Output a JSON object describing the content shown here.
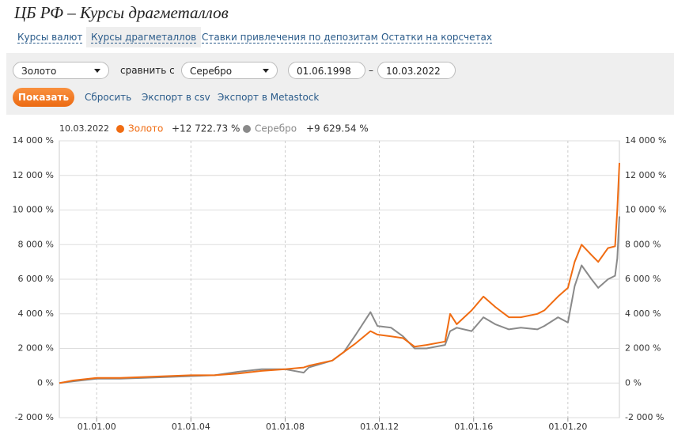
{
  "header": {
    "title": "ЦБ РФ – Курсы драгметаллов"
  },
  "tabs": [
    "Курсы валют",
    "Курсы драгметаллов",
    "Ставки привлечения по депозитам",
    "Остатки на корсчетах"
  ],
  "filters": {
    "metal": "Золото",
    "compare_label": "сравнить с",
    "compare_metal": "Серебро",
    "date_from": "01.06.1998",
    "date_separator": "–",
    "date_to": "10.03.2022"
  },
  "actions": {
    "show": "Показать",
    "reset": "Сбросить",
    "export_csv": "Экспорт в csv",
    "export_metastock": "Экспорт в Metastock"
  },
  "chart_data": {
    "type": "line",
    "legend_date": "10.03.2022",
    "x": [
      "1998-06-01",
      "1999-01-01",
      "2000-01-01",
      "2001-01-01",
      "2002-01-01",
      "2003-01-01",
      "2004-01-01",
      "2005-01-01",
      "2006-01-01",
      "2007-01-01",
      "2008-01-01",
      "2008-10-15",
      "2009-01-01",
      "2010-01-01",
      "2010-07-01",
      "2011-01-01",
      "2011-08-15",
      "2011-12-01",
      "2012-07-01",
      "2013-01-01",
      "2013-07-01",
      "2014-01-01",
      "2014-10-15",
      "2015-01-01",
      "2015-04-15",
      "2015-12-01",
      "2016-06-01",
      "2016-12-01",
      "2017-07-01",
      "2018-01-01",
      "2018-09-15",
      "2019-01-01",
      "2019-08-01",
      "2020-01-01",
      "2020-04-15",
      "2020-08-01",
      "2021-01-01",
      "2021-04-15",
      "2021-09-15",
      "2022-01-01",
      "2022-02-05",
      "2022-03-10"
    ],
    "series": [
      {
        "name": "Золото",
        "color": "#f06c12",
        "last_label": "+12 722.73 %",
        "values": [
          0,
          150,
          300,
          300,
          350,
          400,
          450,
          450,
          550,
          700,
          800,
          900,
          1000,
          1300,
          1800,
          2300,
          3000,
          2800,
          2700,
          2600,
          2100,
          2200,
          2400,
          4000,
          3400,
          4200,
          5000,
          4400,
          3800,
          3800,
          4000,
          4200,
          5000,
          5500,
          7000,
          8000,
          7400,
          7000,
          7800,
          7900,
          10000,
          12722.73
        ]
      },
      {
        "name": "Серебро",
        "color": "#8a8a8a",
        "last_label": "+9 629.54 %",
        "values": [
          0,
          100,
          250,
          250,
          300,
          350,
          400,
          450,
          650,
          800,
          800,
          600,
          900,
          1300,
          1800,
          2800,
          4100,
          3300,
          3200,
          2700,
          2000,
          2000,
          2200,
          3000,
          3200,
          3000,
          3800,
          3400,
          3100,
          3200,
          3100,
          3300,
          3800,
          3500,
          5600,
          6800,
          6000,
          5500,
          6000,
          6200,
          7200,
          9629.54
        ]
      }
    ],
    "xlim": [
      "1998-06-01",
      "2022-03-10"
    ],
    "xticks": [
      {
        "value": "2000-01-01",
        "label": "01.01.00"
      },
      {
        "value": "2004-01-01",
        "label": "01.01.04"
      },
      {
        "value": "2008-01-01",
        "label": "01.01.08"
      },
      {
        "value": "2012-01-01",
        "label": "01.01.12"
      },
      {
        "value": "2016-01-01",
        "label": "01.01.16"
      },
      {
        "value": "2020-01-01",
        "label": "01.01.20"
      }
    ],
    "ylim": [
      -2000,
      14000
    ],
    "yticks": [
      {
        "value": -2000,
        "label": "-2 000 %"
      },
      {
        "value": 0,
        "label": "0 %"
      },
      {
        "value": 2000,
        "label": "2 000 %"
      },
      {
        "value": 4000,
        "label": "4 000 %"
      },
      {
        "value": 6000,
        "label": "6 000 %"
      },
      {
        "value": 8000,
        "label": "8 000 %"
      },
      {
        "value": 10000,
        "label": "10 000 %"
      },
      {
        "value": 12000,
        "label": "12 000 %"
      },
      {
        "value": 14000,
        "label": "14 000 %"
      }
    ],
    "grid": true
  }
}
